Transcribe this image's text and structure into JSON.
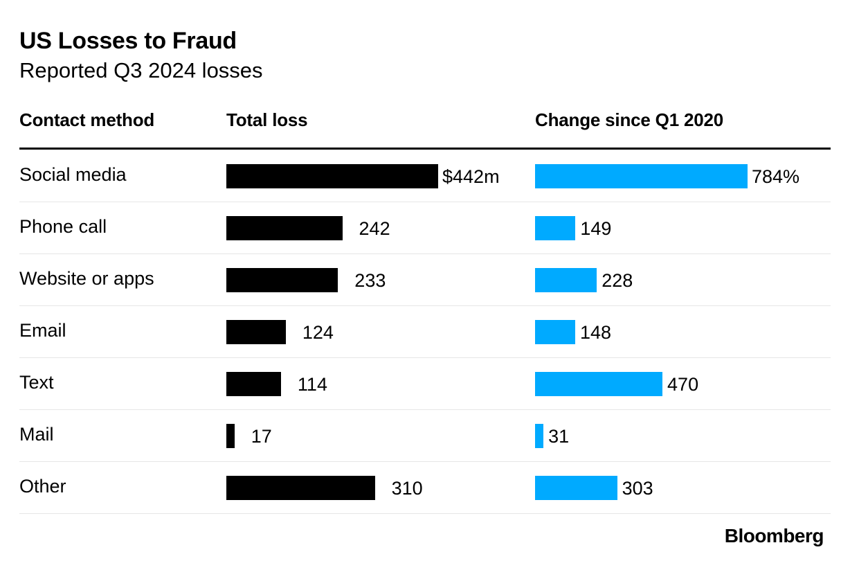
{
  "header": {
    "title": "US Losses to Fraud",
    "subtitle": "Reported Q3 2024 losses"
  },
  "columns": {
    "method": "Contact method",
    "loss": "Total loss",
    "change": "Change since Q1 2020"
  },
  "brand": "Bloomberg",
  "colors": {
    "loss_bar": "#000000",
    "change_bar": "#00aaff"
  },
  "chart_data": {
    "type": "bar",
    "title": "US Losses to Fraud",
    "subtitle": "Reported Q3 2024 losses",
    "categories": [
      "Social media",
      "Phone call",
      "Website or apps",
      "Email",
      "Text",
      "Mail",
      "Other"
    ],
    "series": [
      {
        "name": "Total loss",
        "unit": "$m",
        "values": [
          442,
          242,
          233,
          124,
          114,
          17,
          310
        ],
        "labels": [
          "$442m",
          "242",
          "233",
          "124",
          "114",
          "17",
          "310"
        ]
      },
      {
        "name": "Change since Q1 2020",
        "unit": "%",
        "values": [
          784,
          149,
          228,
          148,
          470,
          31,
          303
        ],
        "labels": [
          "784%",
          "149",
          "228",
          "148",
          "470",
          "31",
          "303"
        ]
      }
    ]
  }
}
